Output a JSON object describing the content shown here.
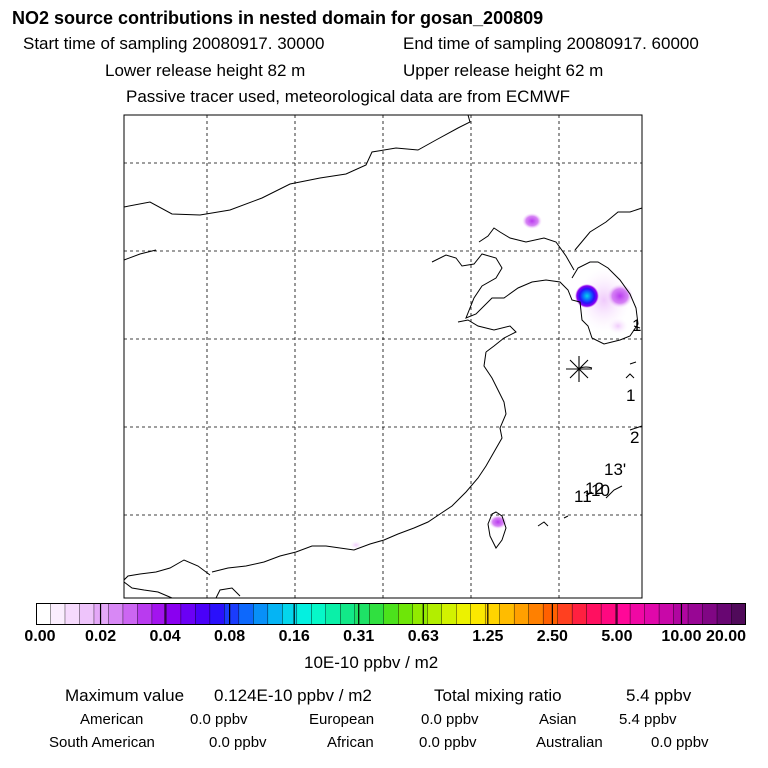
{
  "header": {
    "title": "NO2 source contributions in nested domain for gosan_200809",
    "start_time": "Start time of sampling 20080917. 30000",
    "end_time": "End time of sampling 20080917. 60000",
    "lower_height": "Lower release height   82 m",
    "upper_height": "Upper release height   62 m",
    "tracer_note": "Passive tracer used, meteorological data are from ECMWF"
  },
  "map": {
    "station_marker": "receptor-asterisk",
    "labels": [
      "1",
      "1",
      "2",
      "13'",
      "12",
      "10",
      "11"
    ]
  },
  "colorbar": {
    "tick_labels": [
      "0.00",
      "0.02",
      "0.04",
      "0.08",
      "0.16",
      "0.31",
      "0.63",
      "1.25",
      "2.50",
      "5.00",
      "10.00",
      "20.00"
    ],
    "colors": [
      "#ffffff",
      "#fbeefe",
      "#f6dafd",
      "#eec4fb",
      "#e4a8f8",
      "#d888f5",
      "#cc66f2",
      "#b93bef",
      "#a314ee",
      "#8a00f0",
      "#6b00f5",
      "#4a00f8",
      "#2a10fb",
      "#1a3cfc",
      "#0d68fc",
      "#0890f8",
      "#05b4f4",
      "#04d6ec",
      "#04f0e0",
      "#06f8c8",
      "#0af0a8",
      "#12e888",
      "#1ee266",
      "#30e040",
      "#4ce21c",
      "#6ee608",
      "#92ea00",
      "#b2ee00",
      "#d2f200",
      "#ecf200",
      "#fce800",
      "#ffd400",
      "#ffbc00",
      "#ffa000",
      "#ff8000",
      "#ff6000",
      "#ff4020",
      "#ff2040",
      "#ff1060",
      "#ff0880",
      "#ff0898",
      "#f008a4",
      "#e008aa",
      "#c808a8",
      "#b006a0",
      "#980694",
      "#800684",
      "#680672",
      "#500a5a"
    ],
    "unit": "10E-10 ppbv / m2"
  },
  "stats": {
    "max_label": "Maximum value",
    "max_value": "0.124E-10 ppbv / m2",
    "total_label": "Total mixing ratio",
    "total_value": "5.4 ppbv",
    "regions": [
      {
        "name": "American",
        "value": "0.0 ppbv"
      },
      {
        "name": "European",
        "value": "0.0 ppbv"
      },
      {
        "name": "Asian",
        "value": "5.4 ppbv"
      },
      {
        "name": "South American",
        "value": "0.0 ppbv"
      },
      {
        "name": "African",
        "value": "0.0 ppbv"
      },
      {
        "name": "Australian",
        "value": "0.0 ppbv"
      }
    ]
  }
}
